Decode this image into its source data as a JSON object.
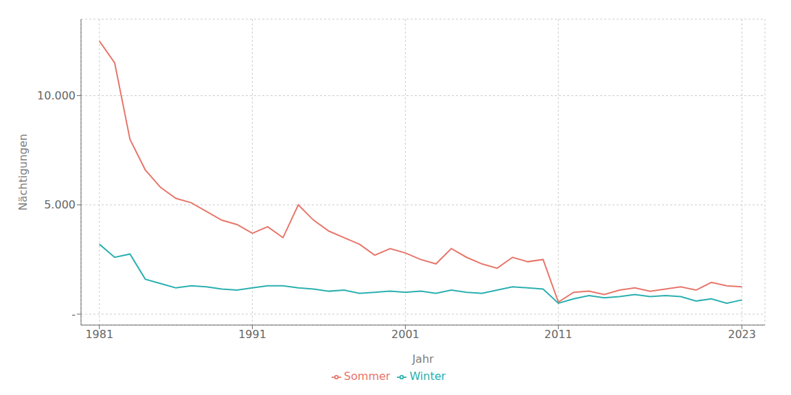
{
  "chart_data": {
    "type": "line",
    "xlabel": "Jahr",
    "ylabel": "Nächtigungen",
    "x": [
      1981,
      1982,
      1983,
      1984,
      1985,
      1986,
      1987,
      1988,
      1989,
      1990,
      1991,
      1992,
      1993,
      1994,
      1995,
      1996,
      1997,
      1998,
      1999,
      2000,
      2001,
      2002,
      2003,
      2004,
      2005,
      2006,
      2007,
      2008,
      2009,
      2010,
      2011,
      2012,
      2013,
      2014,
      2015,
      2016,
      2017,
      2018,
      2019,
      2020,
      2021,
      2022,
      2023
    ],
    "series": [
      {
        "name": "Sommer",
        "color": "#E8756A",
        "values": [
          12500,
          11500,
          8000,
          6600,
          5800,
          5300,
          5100,
          4700,
          4300,
          4100,
          3700,
          4000,
          3500,
          5000,
          4300,
          3800,
          3500,
          3200,
          2700,
          3000,
          2800,
          2500,
          2300,
          3000,
          2600,
          2300,
          2100,
          2600,
          2400,
          2500,
          550,
          1000,
          1050,
          900,
          1100,
          1200,
          1050,
          1150,
          1250,
          1100,
          1450,
          1300,
          1250
        ]
      },
      {
        "name": "Winter",
        "color": "#2AAFAF",
        "values": [
          3200,
          2600,
          2750,
          1600,
          1400,
          1200,
          1300,
          1250,
          1150,
          1100,
          1200,
          1300,
          1300,
          1200,
          1150,
          1050,
          1100,
          950,
          1000,
          1050,
          1000,
          1050,
          950,
          1100,
          1000,
          950,
          1100,
          1250,
          1200,
          1150,
          500,
          700,
          850,
          750,
          800,
          900,
          800,
          850,
          800,
          600,
          700,
          500,
          650
        ]
      }
    ],
    "xlim": [
      1979.8,
      2024.5
    ],
    "xticks": [
      1981,
      1991,
      2001,
      2011,
      2023
    ],
    "ylim": [
      -500,
      13500
    ],
    "yticks": [
      {
        "value": 0,
        "label": "-"
      },
      {
        "value": 5000,
        "label": "5.000"
      },
      {
        "value": 10000,
        "label": "10.000"
      }
    ],
    "grid": true,
    "legend": "bottom"
  }
}
